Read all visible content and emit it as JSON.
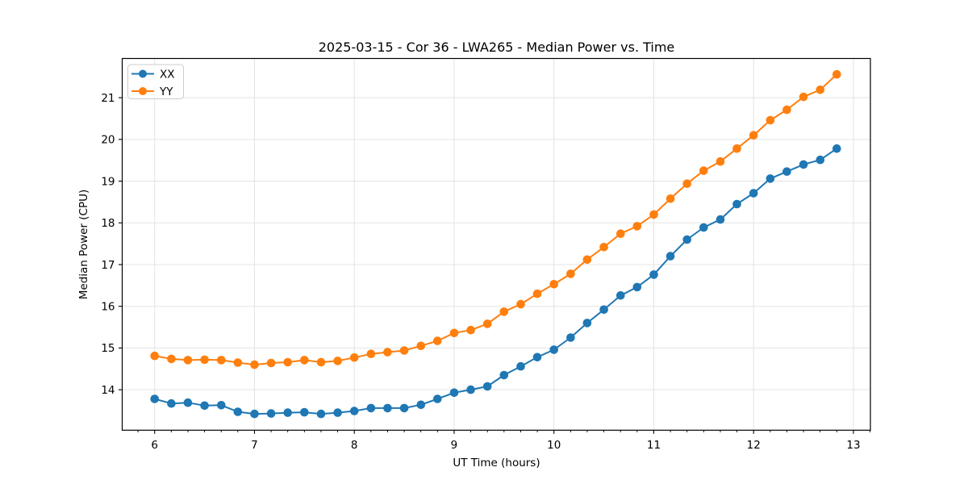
{
  "chart_data": {
    "type": "line",
    "title": "2025-03-15 - Cor 36 - LWA265 - Median Power vs. Time",
    "xlabel": "UT Time (hours)",
    "ylabel": "Median Power (CPU)",
    "xlim": [
      5.675,
      13.17
    ],
    "ylim": [
      13.03,
      21.94
    ],
    "x_ticks": [
      6,
      7,
      8,
      9,
      10,
      11,
      12,
      13
    ],
    "y_ticks": [
      14,
      15,
      16,
      17,
      18,
      19,
      20,
      21
    ],
    "x_minor_tick_step": 0.166667,
    "grid": true,
    "legend_position": "upper-left",
    "x": [
      6.0,
      6.167,
      6.333,
      6.5,
      6.667,
      6.833,
      7.0,
      7.167,
      7.333,
      7.5,
      7.667,
      7.833,
      8.0,
      8.167,
      8.333,
      8.5,
      8.667,
      8.833,
      9.0,
      9.167,
      9.333,
      9.5,
      9.667,
      9.833,
      10.0,
      10.167,
      10.333,
      10.5,
      10.667,
      10.833,
      11.0,
      11.167,
      11.333,
      11.5,
      11.667,
      11.833,
      12.0,
      12.167,
      12.333,
      12.5,
      12.667,
      12.833
    ],
    "series": [
      {
        "name": "XX",
        "color": "#1f77b4",
        "values": [
          13.78,
          13.67,
          13.69,
          13.62,
          13.63,
          13.47,
          13.42,
          13.43,
          13.45,
          13.46,
          13.42,
          13.45,
          13.49,
          13.56,
          13.56,
          13.56,
          13.64,
          13.78,
          13.93,
          14.0,
          14.08,
          14.35,
          14.56,
          14.78,
          14.96,
          15.25,
          15.6,
          15.92,
          16.26,
          16.46,
          16.76,
          17.2,
          17.6,
          17.89,
          18.08,
          18.45,
          18.71,
          19.06,
          19.23,
          19.4,
          19.51,
          19.78
        ]
      },
      {
        "name": "YY",
        "color": "#ff7f0e",
        "values": [
          14.81,
          14.74,
          14.71,
          14.72,
          14.71,
          14.65,
          14.6,
          14.64,
          14.66,
          14.71,
          14.66,
          14.69,
          14.77,
          14.86,
          14.9,
          14.94,
          15.05,
          15.17,
          15.36,
          15.43,
          15.58,
          15.87,
          16.05,
          16.3,
          16.53,
          16.78,
          17.12,
          17.42,
          17.74,
          17.92,
          18.2,
          18.58,
          18.94,
          19.25,
          19.47,
          19.78,
          20.1,
          20.46,
          20.71,
          21.02,
          21.19,
          21.56
        ]
      }
    ]
  },
  "styles": {
    "grid_color": "#e3e3e3",
    "axis_color": "#000000",
    "background": "#ffffff",
    "legend_border": "#cccccc",
    "legend_fill": "#ffffff"
  }
}
